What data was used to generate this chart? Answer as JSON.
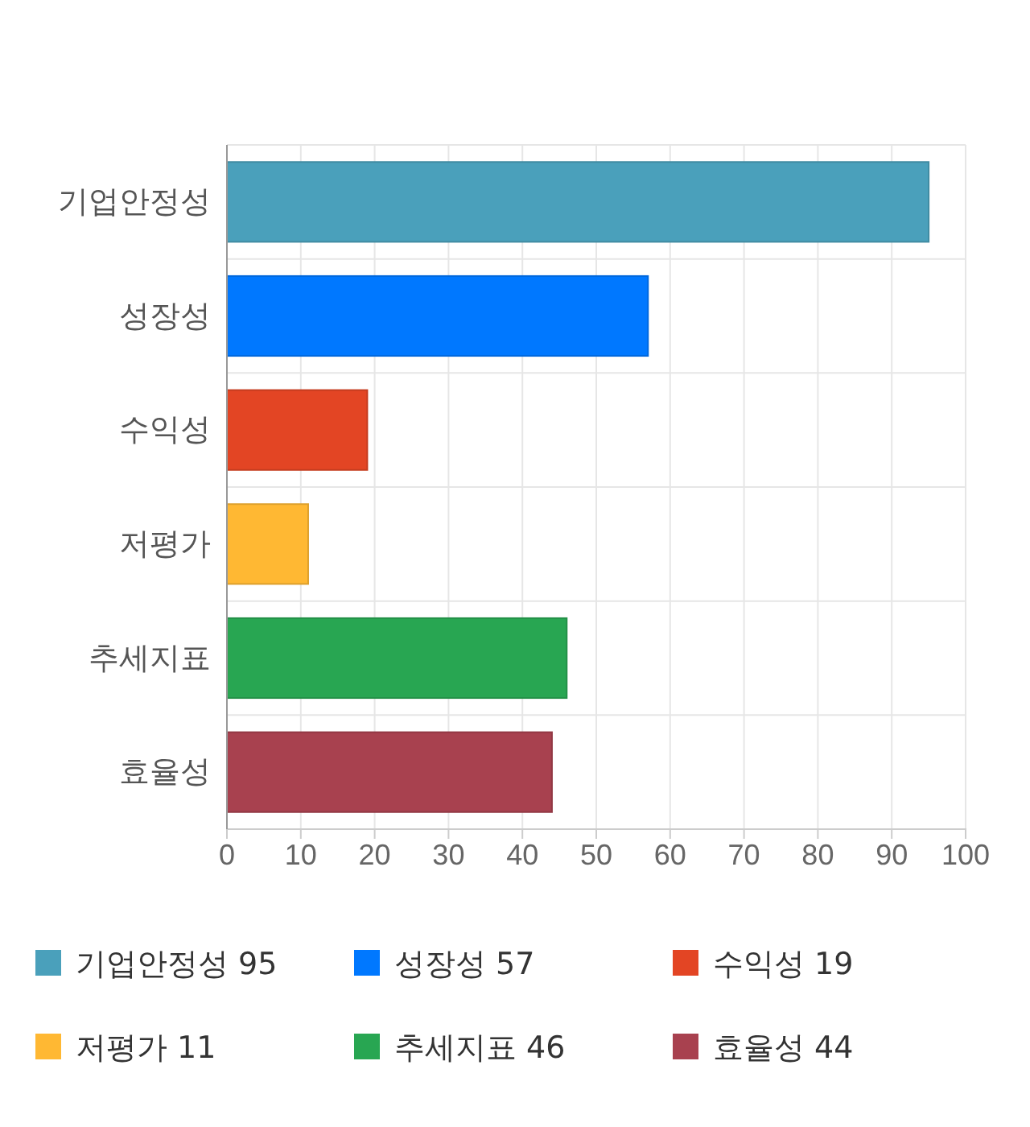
{
  "chart_data": {
    "type": "bar",
    "orientation": "horizontal",
    "categories": [
      "기업안정성",
      "성장성",
      "수익성",
      "저평가",
      "추세지표",
      "효율성"
    ],
    "series": [
      {
        "name": "기업안정성 95",
        "color": "#4aa0bb",
        "values": [
          95,
          null,
          null,
          null,
          null,
          null
        ]
      },
      {
        "name": "성장성 57",
        "color": "#0078ff",
        "values": [
          null,
          57,
          null,
          null,
          null,
          null
        ]
      },
      {
        "name": "수익성 19",
        "color": "#e34524",
        "values": [
          null,
          null,
          19,
          null,
          null,
          null
        ]
      },
      {
        "name": "저평가 11",
        "color": "#ffb833",
        "values": [
          null,
          null,
          null,
          11,
          null,
          null
        ]
      },
      {
        "name": "추세지표 46",
        "color": "#28a652",
        "values": [
          null,
          null,
          null,
          null,
          46,
          null
        ]
      },
      {
        "name": "효율성 44",
        "color": "#a8414f",
        "values": [
          null,
          null,
          null,
          null,
          null,
          44
        ]
      }
    ],
    "xlim": [
      0,
      100
    ],
    "xticks": [
      0,
      10,
      20,
      30,
      40,
      50,
      60,
      70,
      80,
      90,
      100
    ],
    "grid": true,
    "legend": "bottom"
  }
}
